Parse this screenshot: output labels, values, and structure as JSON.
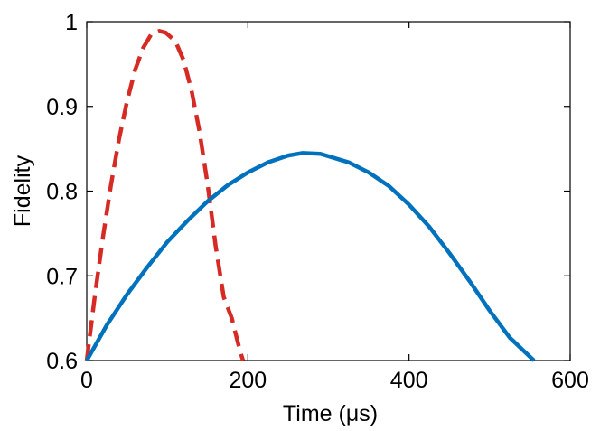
{
  "chart_data": {
    "type": "line",
    "title": "",
    "xlabel": "Time (μs)",
    "ylabel": "Fidelity",
    "xlim": [
      0,
      600
    ],
    "ylim": [
      0.6,
      1.0
    ],
    "xticks": [
      0,
      200,
      400,
      600
    ],
    "yticks": [
      0.6,
      0.7,
      0.8,
      0.9,
      1.0
    ],
    "xtick_labels": [
      "0",
      "200",
      "400",
      "600"
    ],
    "ytick_labels": [
      "0.6",
      "0.7",
      "0.8",
      "0.9",
      "1"
    ],
    "grid": false,
    "legend": "none",
    "series": [
      {
        "color": "#d62a24",
        "style": "dashed",
        "x": [
          0,
          10,
          20,
          30,
          40,
          50,
          60,
          70,
          80,
          90,
          98,
          110,
          120,
          130,
          140,
          150,
          160,
          170,
          180,
          190,
          194
        ],
        "y": [
          0.6,
          0.676,
          0.745,
          0.807,
          0.861,
          0.906,
          0.943,
          0.969,
          0.985,
          0.989,
          0.987,
          0.977,
          0.955,
          0.919,
          0.87,
          0.808,
          0.735,
          0.675,
          0.65,
          0.612,
          0.6
        ]
      },
      {
        "color": "#0072bd",
        "style": "solid",
        "x": [
          0,
          25,
          50,
          75,
          100,
          125,
          150,
          175,
          200,
          225,
          250,
          268,
          290,
          325,
          350,
          375,
          400,
          425,
          450,
          475,
          500,
          525,
          555
        ],
        "y": [
          0.6,
          0.642,
          0.678,
          0.71,
          0.74,
          0.765,
          0.788,
          0.807,
          0.822,
          0.834,
          0.842,
          0.845,
          0.844,
          0.834,
          0.822,
          0.806,
          0.784,
          0.758,
          0.727,
          0.694,
          0.659,
          0.627,
          0.6
        ]
      }
    ]
  }
}
